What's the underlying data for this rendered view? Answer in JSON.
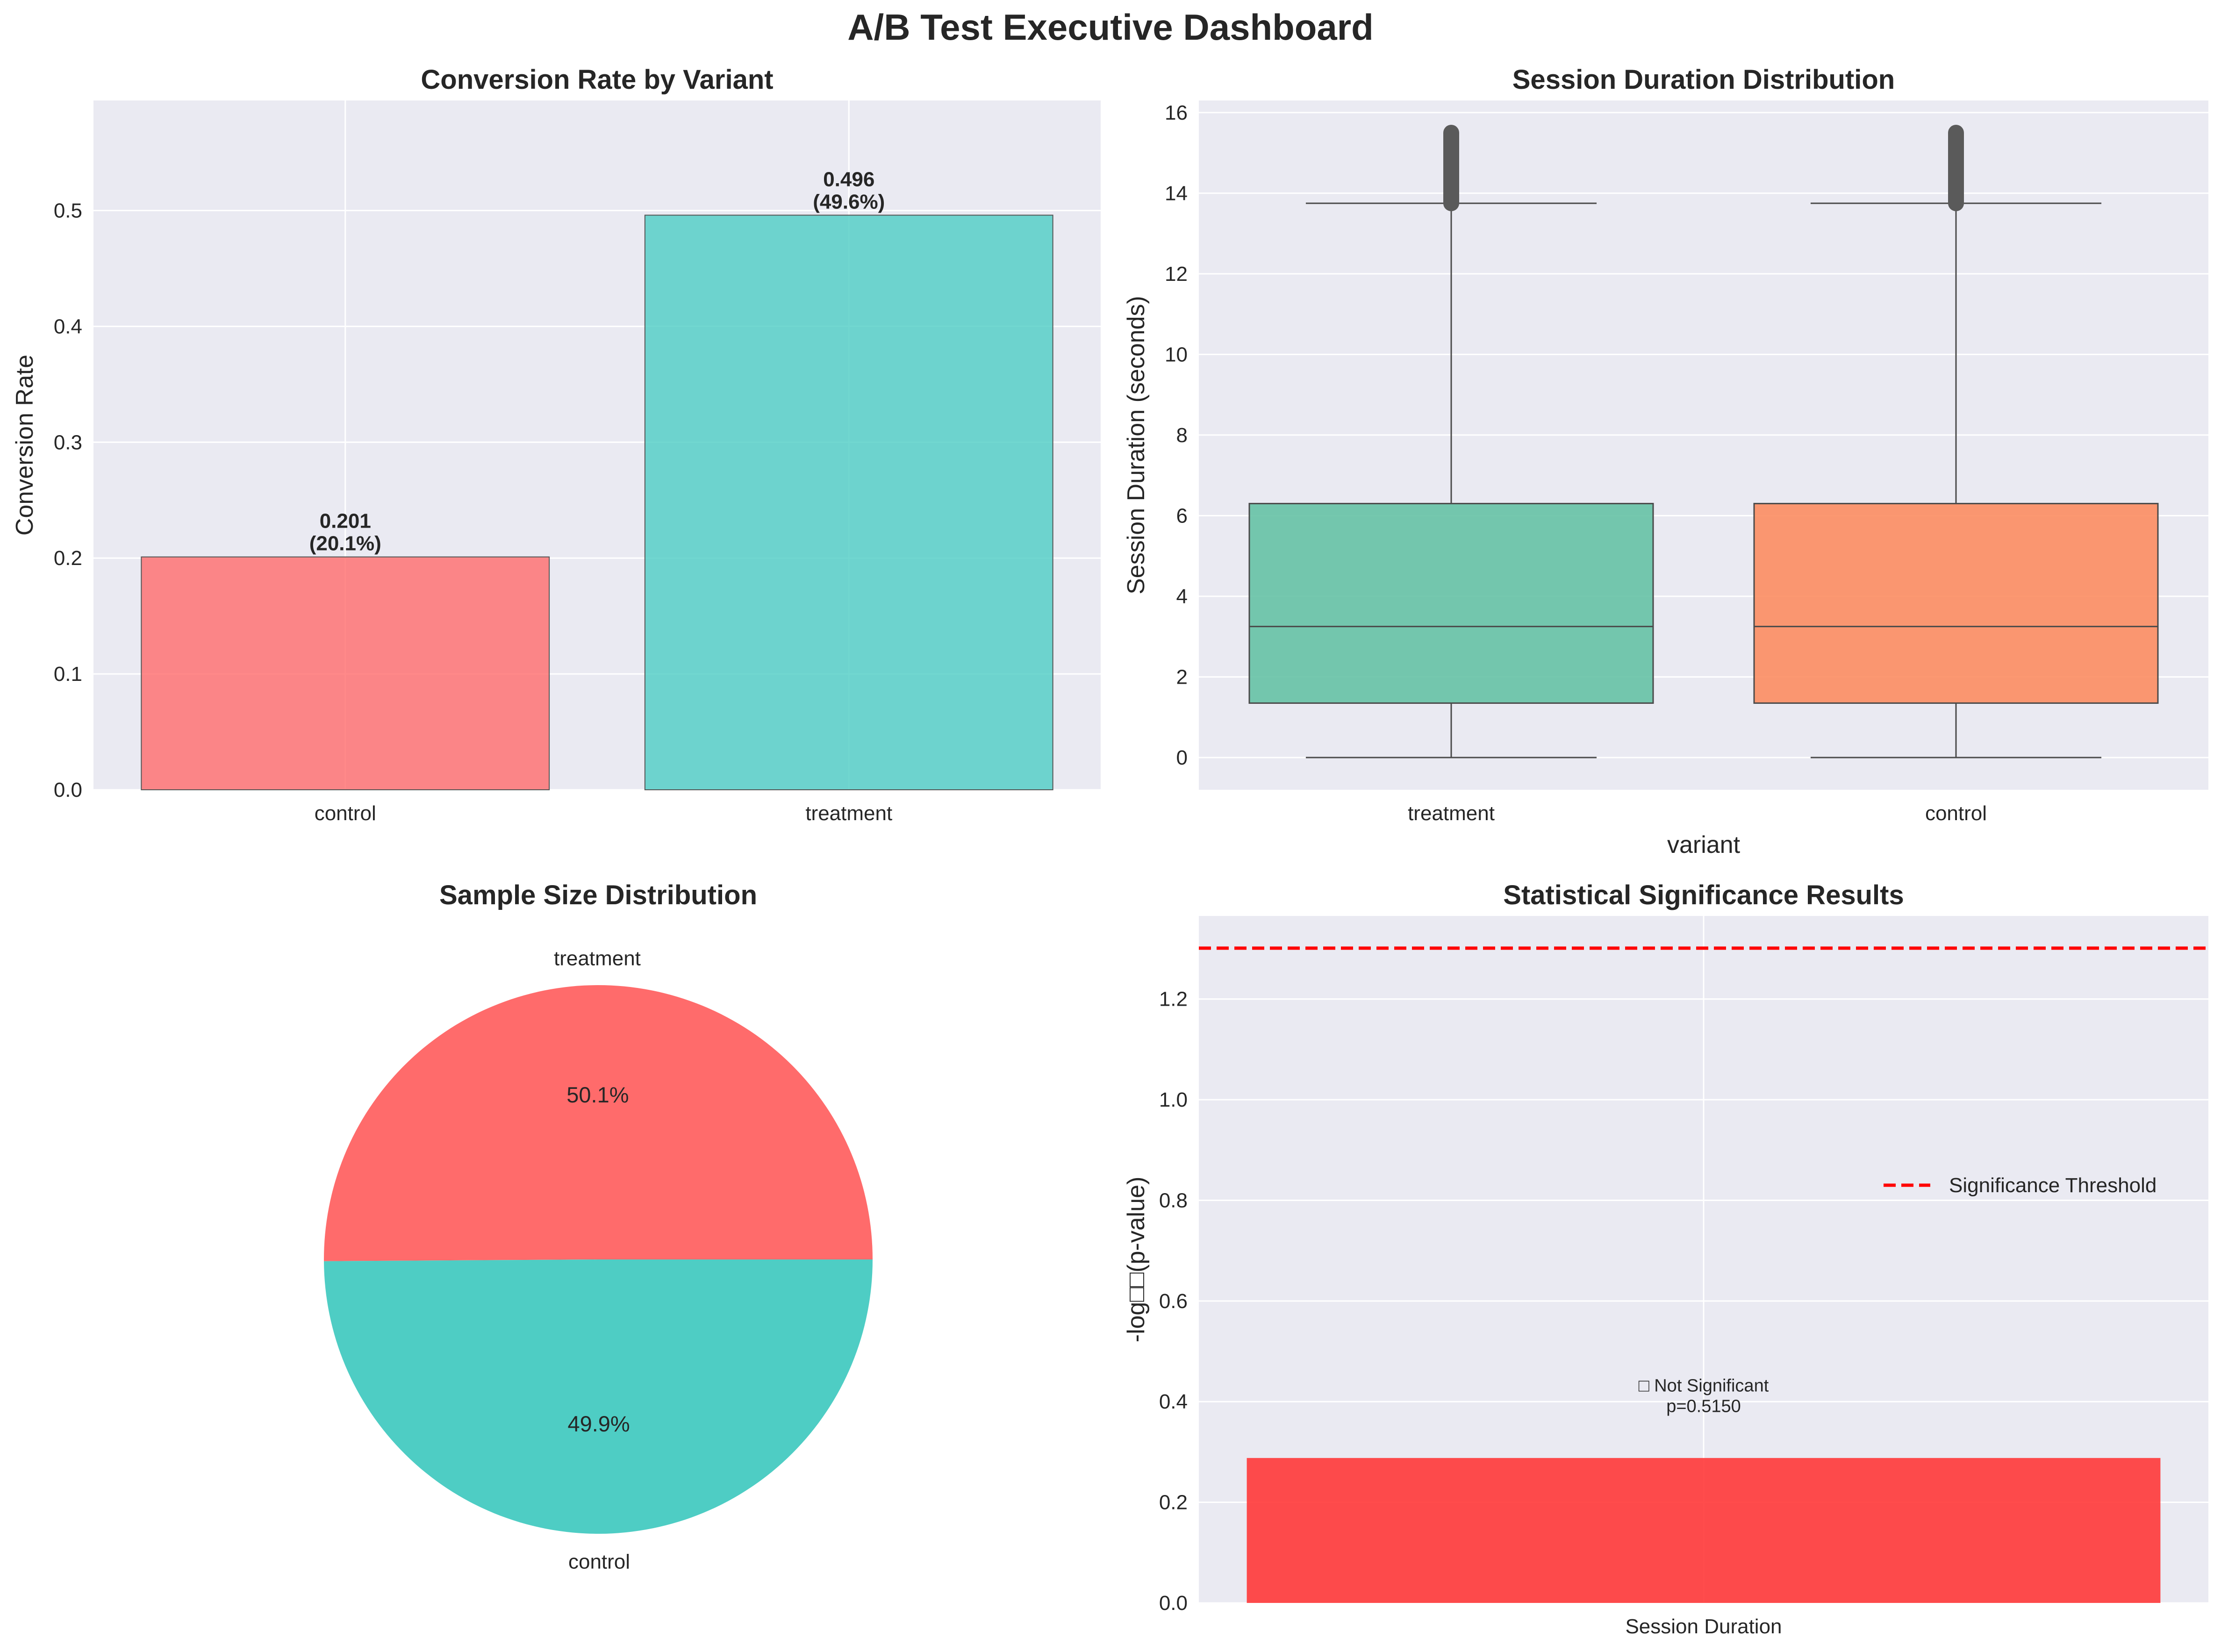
{
  "title": "A/B Test Executive Dashboard",
  "chart_data": [
    {
      "type": "bar",
      "title": "Conversion Rate by Variant",
      "xlabel": "",
      "ylabel": "Conversion Rate",
      "categories": [
        "control",
        "treatment"
      ],
      "values": [
        0.201,
        0.496
      ],
      "bar_labels": [
        "0.201\n(20.1%)",
        "0.496\n(49.6%)"
      ],
      "colors": [
        "#ff6b6b",
        "#4ecdc4"
      ],
      "ylim": [
        0,
        0.595
      ],
      "yticks": [
        0.0,
        0.1,
        0.2,
        0.3,
        0.4,
        0.5
      ],
      "grid": true
    },
    {
      "type": "box",
      "title": "Session Duration Distribution",
      "xlabel": "variant",
      "ylabel": "Session Duration (seconds)",
      "categories": [
        "treatment",
        "control"
      ],
      "series": [
        {
          "name": "treatment",
          "whisker_low": 0.0,
          "q1": 1.35,
          "median": 3.25,
          "q3": 6.3,
          "whisker_high": 13.75,
          "outliers_range": [
            13.75,
            15.5
          ],
          "color": "#66c2a5"
        },
        {
          "name": "control",
          "whisker_low": 0.0,
          "q1": 1.35,
          "median": 3.25,
          "q3": 6.3,
          "whisker_high": 13.75,
          "outliers_range": [
            13.75,
            15.5
          ],
          "color": "#fc8d62"
        }
      ],
      "ylim": [
        -0.8,
        16.3
      ],
      "yticks": [
        0,
        2,
        4,
        6,
        8,
        10,
        12,
        14,
        16
      ],
      "grid": true
    },
    {
      "type": "pie",
      "title": "Sample Size Distribution",
      "labels": [
        "treatment",
        "control"
      ],
      "values": [
        50.1,
        49.9
      ],
      "pct_labels": [
        "50.1%",
        "49.9%"
      ],
      "colors": [
        "#ff6b6b",
        "#4ecdc4"
      ]
    },
    {
      "type": "bar",
      "title": "Statistical Significance Results",
      "xlabel": "",
      "ylabel": "-log□□(p-value)",
      "categories": [
        "Session Duration"
      ],
      "values": [
        0.288
      ],
      "colors": [
        "#ff3333"
      ],
      "annotation": [
        "□ Not Significant",
        "p=0.5150"
      ],
      "threshold": 1.301,
      "legend": "Significance Threshold",
      "legend_position": "center-right",
      "ylim": [
        0,
        1.365
      ],
      "yticks": [
        0.0,
        0.2,
        0.4,
        0.6,
        0.8,
        1.0,
        1.2
      ],
      "grid": true
    }
  ]
}
